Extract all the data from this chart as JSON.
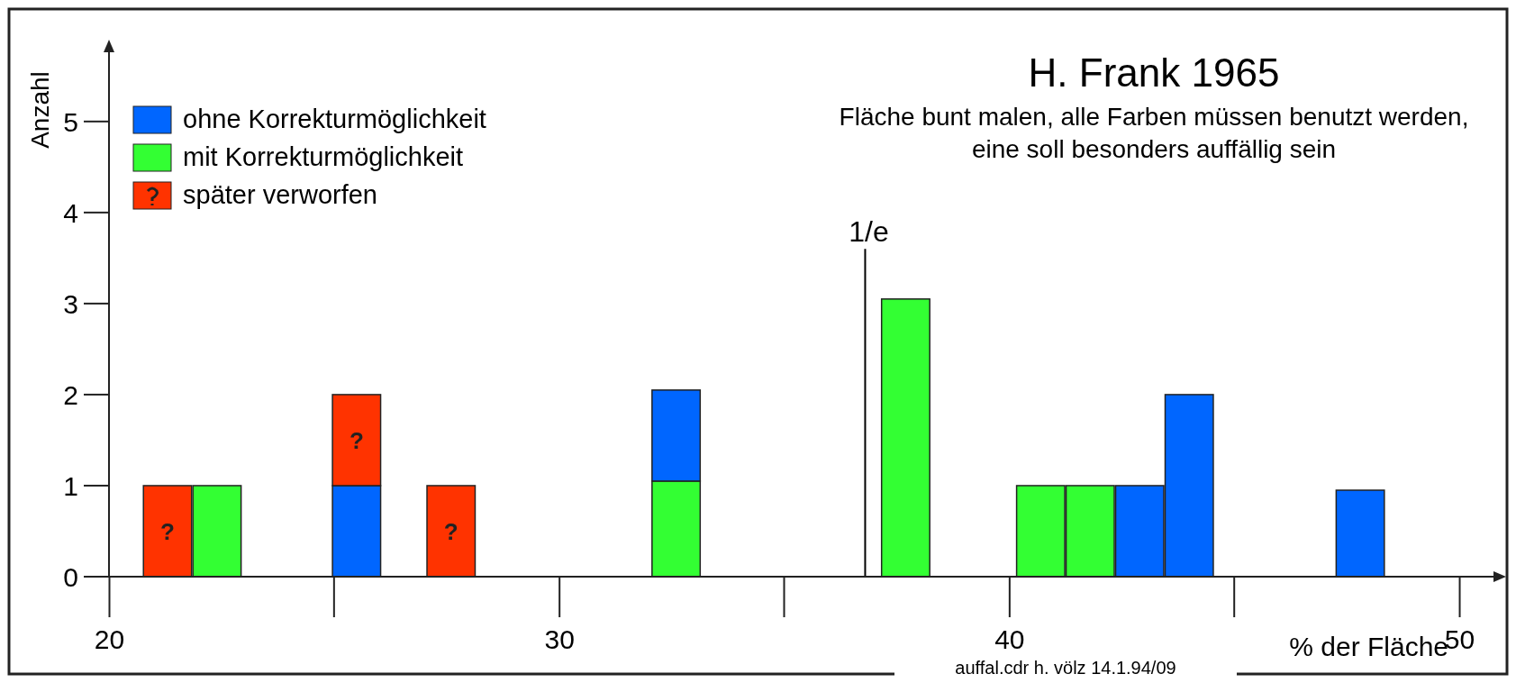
{
  "chart_data": {
    "type": "bar",
    "title": "H. Frank 1965",
    "subtitle": "Fläche bunt malen, alle Farben müssen benutzt werden, eine soll besonders auffällig sein",
    "xlabel": "% der Fläche",
    "ylabel": "Anzahl",
    "stacked": true,
    "x": [
      21.3,
      22.4,
      25.5,
      27.6,
      32.6,
      37.7,
      40.7,
      41.8,
      42.9,
      44.0,
      47.8
    ],
    "series": [
      {
        "name": "mit Korrekturmöglichkeit",
        "color": "#33ff33",
        "values": [
          null,
          1,
          null,
          null,
          1.05,
          3.05,
          1,
          1,
          null,
          null,
          null
        ]
      },
      {
        "name": "ohne Korrekturmöglichkeit",
        "color": "#0066ff",
        "values": [
          null,
          null,
          1,
          null,
          1,
          null,
          null,
          null,
          1,
          2,
          0.95
        ]
      },
      {
        "name": "später verworfen",
        "color": "#ff3300",
        "values": [
          1,
          null,
          1,
          1,
          null,
          null,
          null,
          null,
          null,
          null,
          null
        ]
      }
    ],
    "xlim": [
      20,
      50.8
    ],
    "ylim": [
      0,
      5.8
    ],
    "xticks": [
      20,
      30,
      40,
      50
    ],
    "yticks": [
      0,
      1,
      2,
      3,
      4,
      5
    ],
    "ref_lines": [
      {
        "axis": "x",
        "value": 36.8,
        "label": "1/e",
        "color": "#000000"
      }
    ],
    "annotations": [
      "?",
      "?",
      "?",
      "auffal.cdr  h. völz  14.1.94/09"
    ],
    "legend": "top left",
    "grid": false
  }
}
